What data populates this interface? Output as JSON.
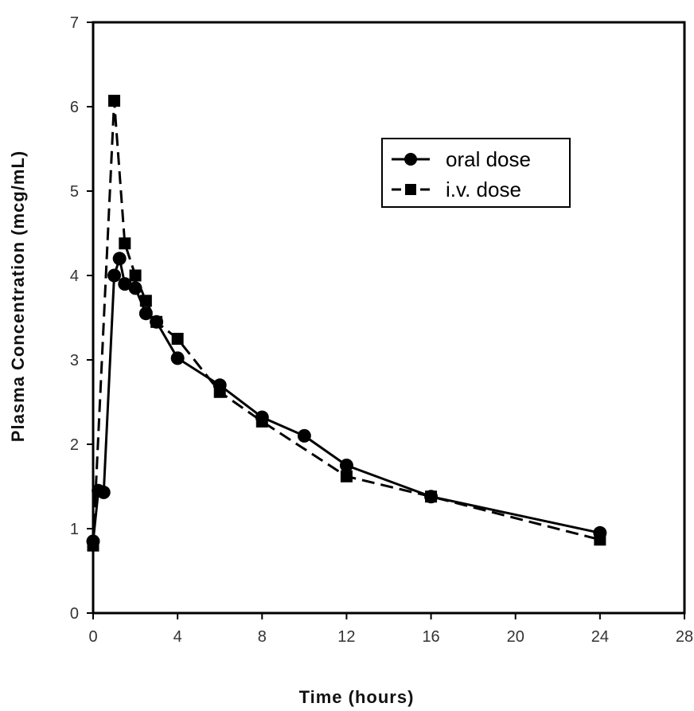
{
  "chart_data": {
    "type": "line",
    "title": "",
    "xlabel": "Time (hours)",
    "ylabel": "Plasma Concentration (mcg/mL)",
    "xlim": [
      0,
      28
    ],
    "ylim": [
      0,
      7
    ],
    "x_ticks": [
      "0",
      "4",
      "8",
      "12",
      "16",
      "20",
      "24",
      "28"
    ],
    "y_ticks": [
      "0",
      "1",
      "2",
      "3",
      "4",
      "5",
      "6",
      "7"
    ],
    "grid": false,
    "legend_position": "top-right",
    "series": [
      {
        "name": "oral dose",
        "marker": "circle",
        "line_style": "solid",
        "color": "#000000",
        "x": [
          0,
          0.25,
          0.5,
          1,
          1.25,
          1.5,
          2,
          2.5,
          3,
          4,
          6,
          8,
          10,
          12,
          16,
          24
        ],
        "y": [
          0.85,
          1.45,
          1.43,
          4.0,
          4.2,
          3.9,
          3.85,
          3.55,
          3.45,
          3.02,
          2.7,
          2.32,
          2.1,
          1.75,
          1.38,
          0.95
        ]
      },
      {
        "name": "i.v. dose",
        "marker": "square",
        "line_style": "dashed",
        "color": "#000000",
        "x": [
          0,
          1,
          1.5,
          2,
          2.5,
          3,
          4,
          6,
          8,
          12,
          16,
          24
        ],
        "y": [
          0.8,
          6.07,
          4.38,
          4.0,
          3.7,
          3.45,
          3.25,
          2.62,
          2.27,
          1.62,
          1.38,
          0.87
        ]
      }
    ]
  }
}
